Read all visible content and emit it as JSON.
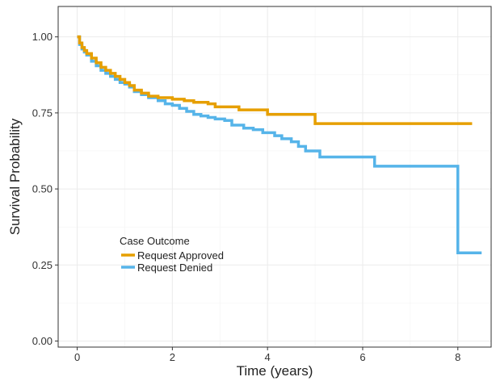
{
  "chart_data": {
    "type": "line",
    "step": true,
    "title": "",
    "xlabel": "Time (years)",
    "ylabel": "Survival Probability",
    "xlim": [
      -0.4,
      8.7
    ],
    "ylim": [
      -0.02,
      1.1
    ],
    "x_ticks": [
      0,
      2,
      4,
      6,
      8
    ],
    "x_tick_labels": [
      "0",
      "2",
      "4",
      "6",
      "8"
    ],
    "y_ticks": [
      0.0,
      0.25,
      0.5,
      0.75,
      1.0
    ],
    "y_tick_labels": [
      "0.00",
      "0.25",
      "0.50",
      "0.75",
      "1.00"
    ],
    "grid": true,
    "legend": {
      "title": "Case Outcome",
      "placement": "inside-lower-left"
    },
    "series": [
      {
        "name": "Request Approved",
        "color": "#E69F00",
        "x": [
          0,
          0.05,
          0.1,
          0.15,
          0.2,
          0.3,
          0.4,
          0.5,
          0.6,
          0.7,
          0.8,
          0.9,
          1.0,
          1.1,
          1.2,
          1.35,
          1.5,
          1.7,
          2.0,
          2.25,
          2.45,
          2.75,
          2.9,
          3.4,
          4.0,
          5.0,
          8.3
        ],
        "y": [
          1.0,
          0.98,
          0.965,
          0.955,
          0.945,
          0.93,
          0.915,
          0.9,
          0.89,
          0.88,
          0.87,
          0.86,
          0.85,
          0.84,
          0.825,
          0.815,
          0.805,
          0.8,
          0.795,
          0.79,
          0.785,
          0.78,
          0.77,
          0.76,
          0.745,
          0.715,
          0.715
        ]
      },
      {
        "name": "Request Denied",
        "color": "#56B4E9",
        "x": [
          0,
          0.05,
          0.1,
          0.15,
          0.2,
          0.3,
          0.4,
          0.5,
          0.6,
          0.7,
          0.8,
          0.9,
          1.0,
          1.1,
          1.2,
          1.35,
          1.5,
          1.7,
          1.85,
          2.0,
          2.15,
          2.3,
          2.45,
          2.6,
          2.75,
          2.9,
          3.1,
          3.25,
          3.5,
          3.7,
          3.9,
          4.15,
          4.3,
          4.5,
          4.65,
          4.8,
          5.1,
          6.25,
          8.0,
          8.5
        ],
        "y": [
          1.0,
          0.975,
          0.96,
          0.95,
          0.94,
          0.92,
          0.905,
          0.89,
          0.88,
          0.87,
          0.86,
          0.85,
          0.845,
          0.835,
          0.82,
          0.81,
          0.8,
          0.79,
          0.78,
          0.775,
          0.765,
          0.755,
          0.745,
          0.74,
          0.735,
          0.73,
          0.725,
          0.71,
          0.7,
          0.695,
          0.685,
          0.675,
          0.665,
          0.655,
          0.64,
          0.625,
          0.605,
          0.575,
          0.29,
          0.29
        ]
      }
    ]
  }
}
